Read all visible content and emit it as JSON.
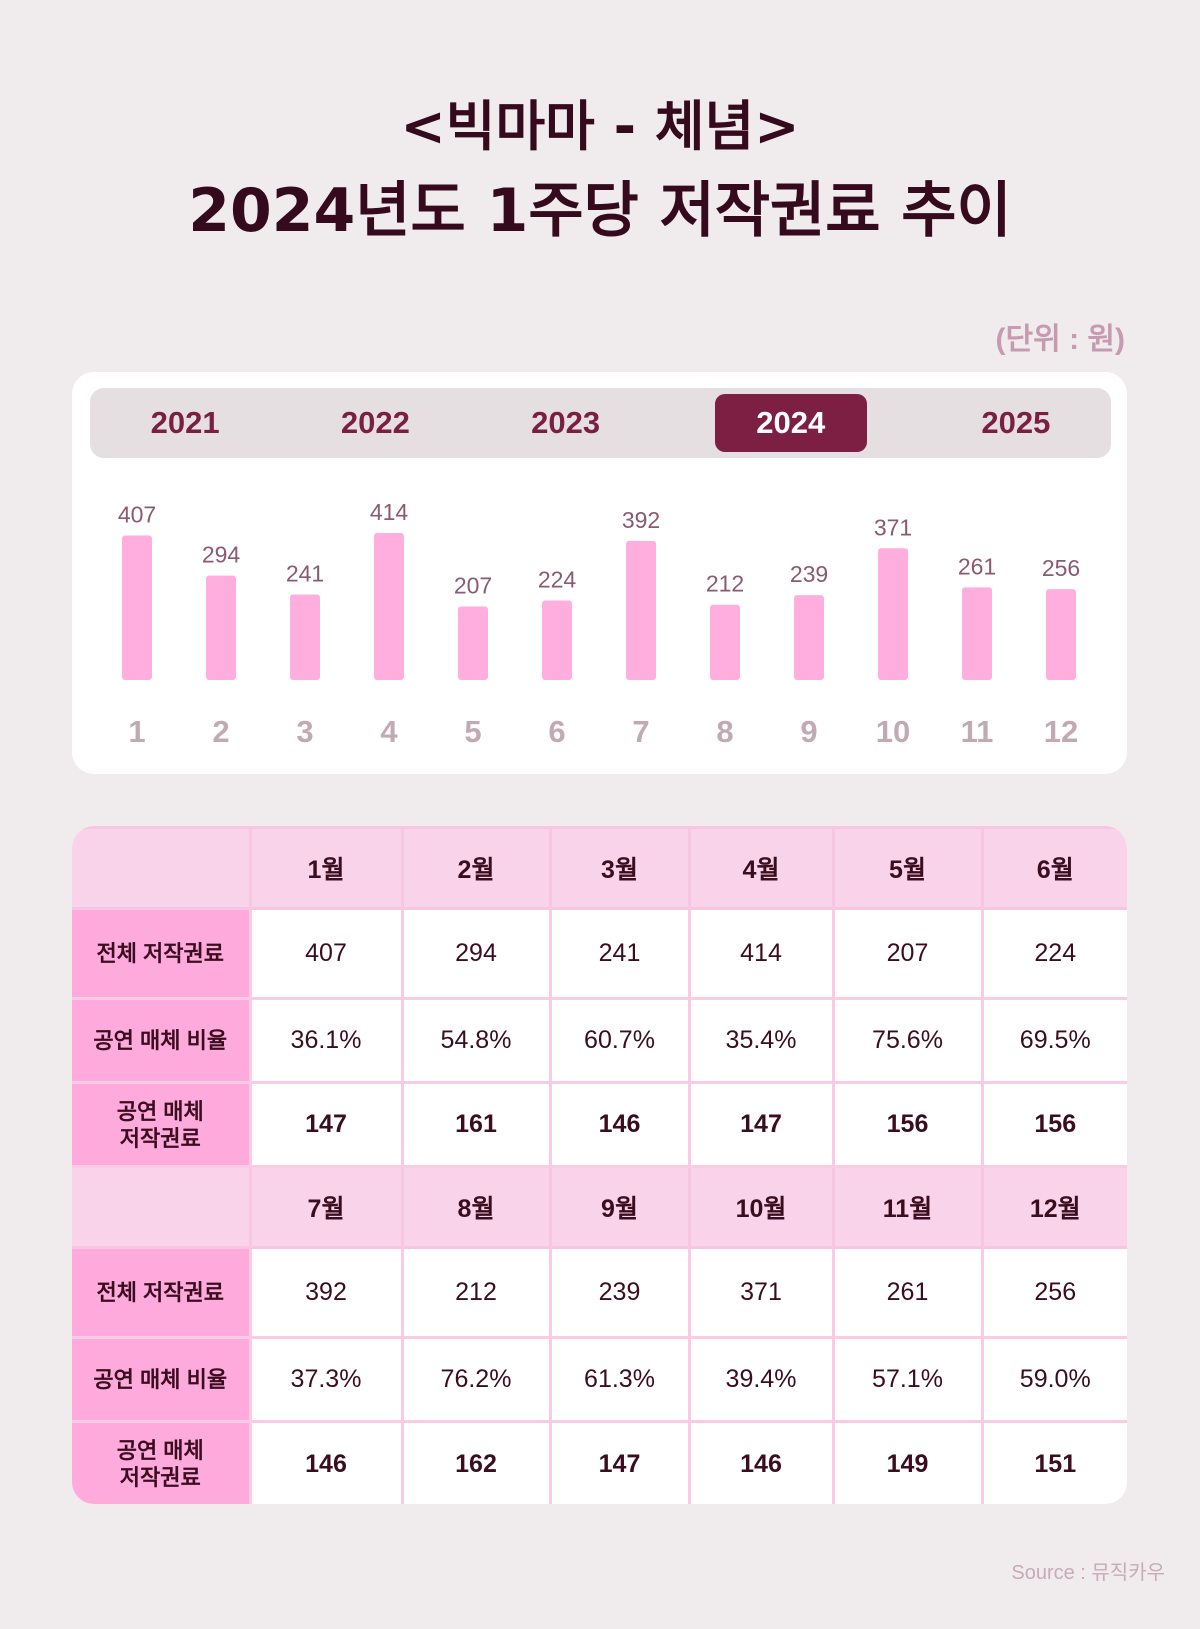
{
  "title": {
    "line1": "<빅마마 - 체념>",
    "line2": "2024년도 1주당 저작권료 추이"
  },
  "unit": "(단위 : 원)",
  "tabs": [
    {
      "label": "2021"
    },
    {
      "label": "2022"
    },
    {
      "label": "2023"
    },
    {
      "label": "2024",
      "active": true
    },
    {
      "label": "2025"
    }
  ],
  "colors": {
    "bar": "#ffaedd",
    "active_tab": "#7d1e43",
    "label_col": "#ffaadd",
    "header": "#f9d3ea"
  },
  "chart_data": {
    "type": "bar",
    "categories": [
      "1",
      "2",
      "3",
      "4",
      "5",
      "6",
      "7",
      "8",
      "9",
      "10",
      "11",
      "12"
    ],
    "values": [
      407,
      294,
      241,
      414,
      207,
      224,
      392,
      212,
      239,
      371,
      261,
      256
    ],
    "grid": false
  },
  "table": {
    "row_labels": {
      "total": "전체 저작권료",
      "ratio": "공연 매체 비율",
      "perf_line1": "공연 매체",
      "perf_line2": "저작권료"
    },
    "blocks": [
      {
        "months": [
          "1월",
          "2월",
          "3월",
          "4월",
          "5월",
          "6월"
        ],
        "total": [
          "407",
          "294",
          "241",
          "414",
          "207",
          "224"
        ],
        "ratio": [
          "36.1%",
          "54.8%",
          "60.7%",
          "35.4%",
          "75.6%",
          "69.5%"
        ],
        "perf": [
          "147",
          "161",
          "146",
          "147",
          "156",
          "156"
        ]
      },
      {
        "months": [
          "7월",
          "8월",
          "9월",
          "10월",
          "11월",
          "12월"
        ],
        "total": [
          "392",
          "212",
          "239",
          "371",
          "261",
          "256"
        ],
        "ratio": [
          "37.3%",
          "76.2%",
          "61.3%",
          "39.4%",
          "57.1%",
          "59.0%"
        ],
        "perf": [
          "146",
          "162",
          "147",
          "146",
          "149",
          "151"
        ]
      }
    ]
  },
  "source": "Source : 뮤직카우"
}
